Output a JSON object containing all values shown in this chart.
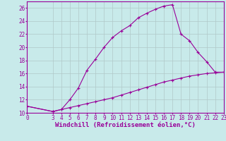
{
  "xlabel": "Windchill (Refroidissement éolien,°C)",
  "background_color": "#c8eaea",
  "line_color": "#990099",
  "grid_color": "#b0c8c8",
  "xlim": [
    0,
    23
  ],
  "ylim": [
    10,
    27
  ],
  "yticks": [
    10,
    12,
    14,
    16,
    18,
    20,
    22,
    24,
    26
  ],
  "xticks": [
    0,
    3,
    4,
    5,
    6,
    7,
    8,
    9,
    10,
    11,
    12,
    13,
    14,
    15,
    16,
    17,
    18,
    19,
    20,
    21,
    22,
    23
  ],
  "series1_x": [
    0,
    3,
    4,
    5,
    6,
    7,
    8,
    9,
    10,
    11,
    12,
    13,
    14,
    15,
    16,
    17,
    18,
    19,
    20,
    21,
    22,
    23
  ],
  "series1_y": [
    11.0,
    10.2,
    10.5,
    12.0,
    13.8,
    16.5,
    18.2,
    20.0,
    21.5,
    22.5,
    23.3,
    24.5,
    25.2,
    25.8,
    26.3,
    26.5,
    22.0,
    21.0,
    19.2,
    17.8,
    16.2,
    16.2
  ],
  "series2_x": [
    0,
    3,
    4,
    5,
    6,
    7,
    8,
    9,
    10,
    11,
    12,
    13,
    14,
    15,
    16,
    17,
    18,
    19,
    20,
    21,
    22,
    23
  ],
  "series2_y": [
    11.0,
    10.2,
    10.5,
    10.8,
    11.1,
    11.4,
    11.7,
    12.0,
    12.3,
    12.7,
    13.1,
    13.5,
    13.9,
    14.3,
    14.7,
    15.0,
    15.3,
    15.6,
    15.8,
    16.0,
    16.1,
    16.2
  ],
  "tick_fontsize": 5.5,
  "xlabel_fontsize": 6.5,
  "marker": "D",
  "marker_size": 2.0,
  "linewidth": 0.8
}
